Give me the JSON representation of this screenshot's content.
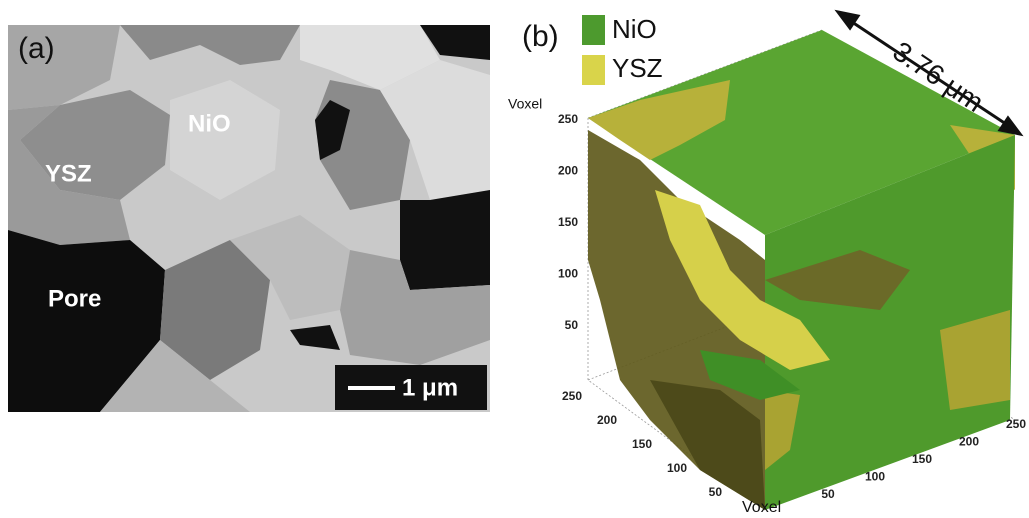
{
  "panel_a": {
    "label": "(a)",
    "annotations": [
      "NiO",
      "YSZ",
      "Pore"
    ],
    "scale_bar": "1 μm"
  },
  "panel_b": {
    "label": "(b)",
    "legend": [
      {
        "name": "NiO",
        "color": "#4d9a2e"
      },
      {
        "name": "YSZ",
        "color": "#d9d44a"
      }
    ],
    "dimension": "3.76 μm",
    "z_axis": {
      "label": "Voxel",
      "ticks": [
        250,
        200,
        150,
        100,
        50
      ]
    },
    "depth_axis": {
      "ticks": [
        250,
        200,
        150,
        100,
        50
      ]
    },
    "x_axis": {
      "label": "Voxel",
      "ticks": [
        50,
        100,
        150,
        200,
        250
      ]
    }
  }
}
